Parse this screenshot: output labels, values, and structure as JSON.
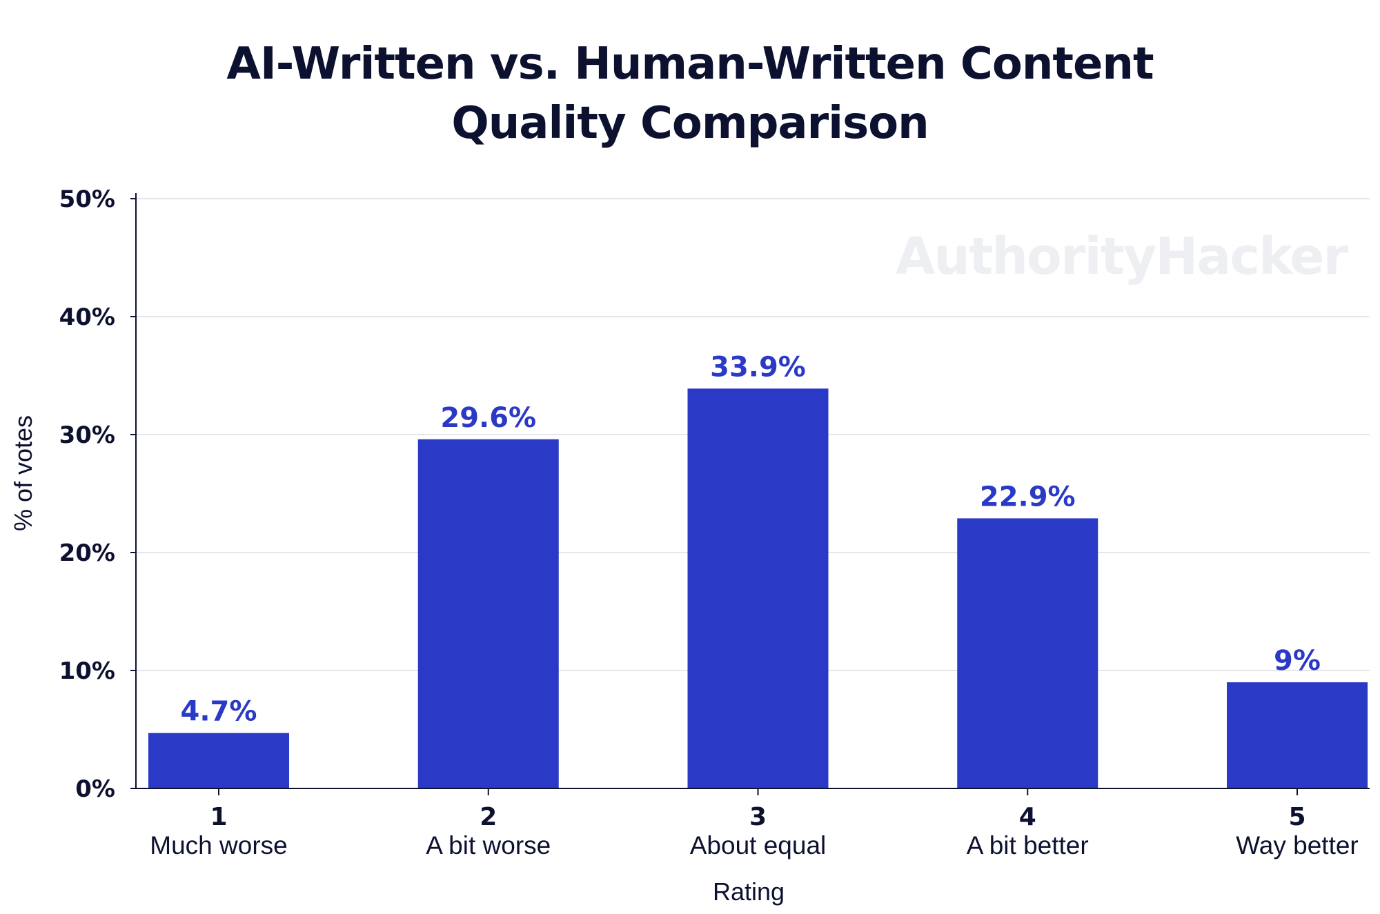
{
  "chart_data": {
    "type": "bar",
    "title_lines": [
      "AI-Written vs. Human-Written Content",
      "Quality Comparison"
    ],
    "categories": [
      "1",
      "2",
      "3",
      "4",
      "5"
    ],
    "category_labels": [
      "Much worse",
      "A bit worse",
      "About equal",
      "A bit better",
      "Way better"
    ],
    "values": [
      4.7,
      29.6,
      33.9,
      22.9,
      9
    ],
    "data_labels": [
      "4.7%",
      "29.6%",
      "33.9%",
      "22.9%",
      "9%"
    ],
    "xlabel": "Rating",
    "ylabel": "% of votes",
    "ylim": [
      0,
      50
    ],
    "yticks": [
      0,
      10,
      20,
      30,
      40,
      50
    ],
    "ytick_labels": [
      "0%",
      "10%",
      "20%",
      "30%",
      "40%",
      "50%"
    ],
    "grid": true,
    "bar_color": "#2a39c6",
    "watermark": "AuthorityHacker"
  }
}
